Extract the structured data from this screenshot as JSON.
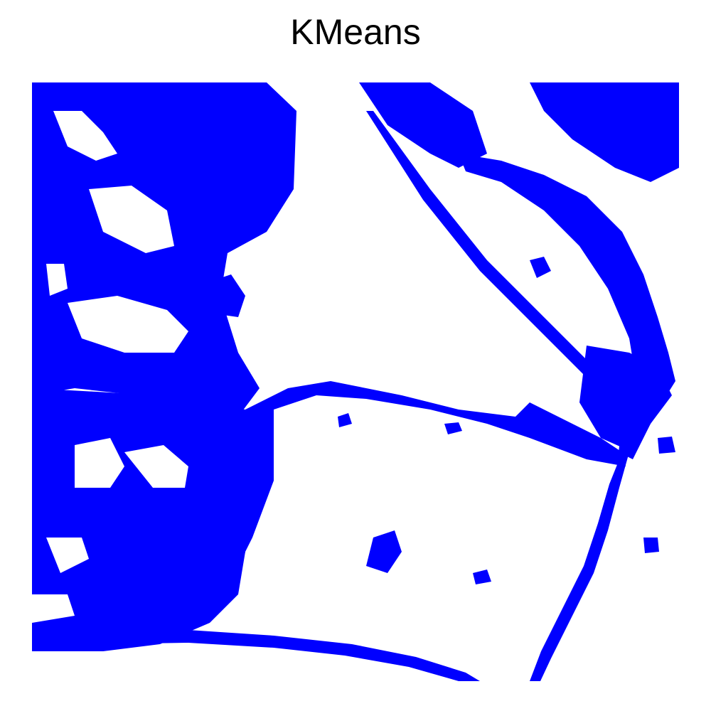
{
  "title": "KMeans",
  "colors": {
    "foreground_class": "#0000ff",
    "background_class": "#ffffff"
  }
}
